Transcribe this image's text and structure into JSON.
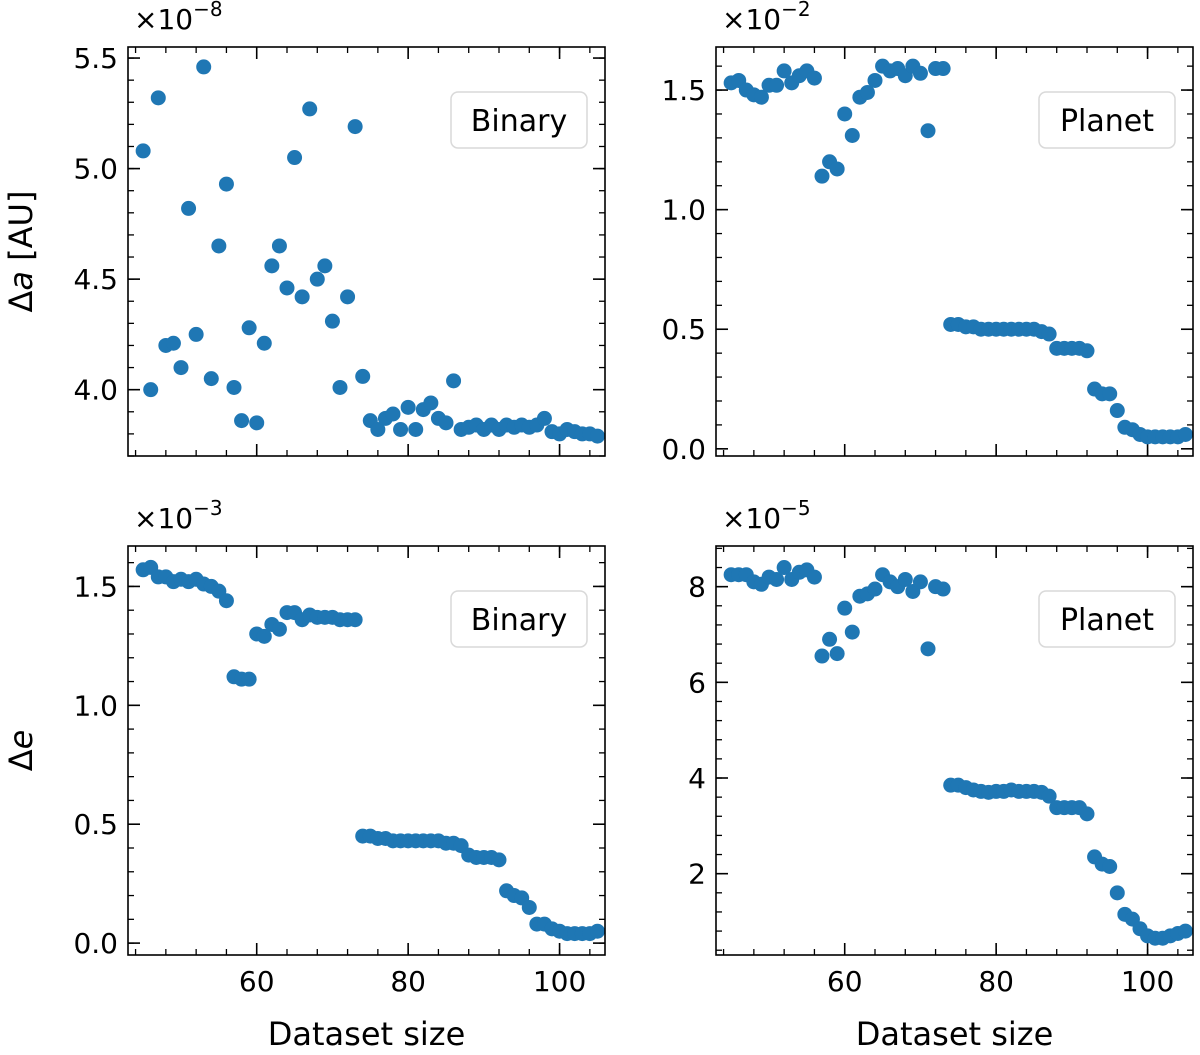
{
  "chart_data": [
    {
      "type": "scatter",
      "legend": "Binary",
      "legend_position": "top-right",
      "multiplier": {
        "base": "×10",
        "exp": "−8"
      },
      "ylabel_prefix": "Δ",
      "ylabel_var": "a",
      "ylabel_unit": " [AU]",
      "xlabel": "",
      "xlim": [
        43,
        106
      ],
      "ylim": [
        3.7,
        5.55
      ],
      "xticks": [
        60,
        80,
        100
      ],
      "yticks": [
        4.0,
        4.5,
        5.0,
        5.5
      ],
      "ytick_labels": [
        "4.0",
        "4.5",
        "5.0",
        "5.5"
      ],
      "series": [
        {
          "color": "#1f77b4",
          "x": [
            45,
            46,
            47,
            48,
            49,
            50,
            51,
            52,
            53,
            54,
            55,
            56,
            57,
            58,
            59,
            60,
            61,
            62,
            63,
            64,
            65,
            66,
            67,
            68,
            69,
            70,
            71,
            72,
            73,
            74,
            75,
            76,
            77,
            78,
            79,
            80,
            81,
            82,
            83,
            84,
            85,
            86,
            87,
            88,
            89,
            90,
            91,
            92,
            93,
            94,
            95,
            96,
            97,
            98,
            99,
            100,
            101,
            102,
            103,
            104,
            105
          ],
          "y": [
            5.08,
            4.0,
            5.32,
            4.2,
            4.21,
            4.1,
            4.82,
            4.25,
            5.46,
            4.05,
            4.65,
            4.93,
            4.01,
            3.86,
            4.28,
            3.85,
            4.21,
            4.56,
            4.65,
            4.46,
            5.05,
            4.42,
            5.27,
            4.5,
            4.56,
            4.31,
            4.01,
            4.42,
            5.19,
            4.06,
            3.86,
            3.82,
            3.87,
            3.89,
            3.82,
            3.92,
            3.82,
            3.91,
            3.94,
            3.87,
            3.85,
            4.04,
            3.82,
            3.83,
            3.84,
            3.82,
            3.84,
            3.82,
            3.84,
            3.83,
            3.84,
            3.83,
            3.84,
            3.87,
            3.81,
            3.8,
            3.82,
            3.81,
            3.8,
            3.8,
            3.79
          ]
        }
      ]
    },
    {
      "type": "scatter",
      "legend": "Planet",
      "legend_position": "top-right",
      "multiplier": {
        "base": "×10",
        "exp": "−2"
      },
      "xlabel": "",
      "xlim": [
        43,
        106
      ],
      "ylim": [
        -0.03,
        1.68
      ],
      "xticks": [
        60,
        80,
        100
      ],
      "yticks": [
        0.0,
        0.5,
        1.0,
        1.5
      ],
      "ytick_labels": [
        "0.0",
        "0.5",
        "1.0",
        "1.5"
      ],
      "series": [
        {
          "color": "#1f77b4",
          "x": [
            45,
            46,
            47,
            48,
            49,
            50,
            51,
            52,
            53,
            54,
            55,
            56,
            57,
            58,
            59,
            60,
            61,
            62,
            63,
            64,
            65,
            66,
            67,
            68,
            69,
            70,
            71,
            72,
            73,
            74,
            75,
            76,
            77,
            78,
            79,
            80,
            81,
            82,
            83,
            84,
            85,
            86,
            87,
            88,
            89,
            90,
            91,
            92,
            93,
            94,
            95,
            96,
            97,
            98,
            99,
            100,
            101,
            102,
            103,
            104,
            105
          ],
          "y": [
            1.53,
            1.54,
            1.5,
            1.48,
            1.47,
            1.52,
            1.52,
            1.58,
            1.53,
            1.56,
            1.58,
            1.55,
            1.14,
            1.2,
            1.17,
            1.4,
            1.31,
            1.47,
            1.49,
            1.54,
            1.6,
            1.58,
            1.59,
            1.56,
            1.6,
            1.57,
            1.33,
            1.59,
            1.59,
            0.52,
            0.52,
            0.51,
            0.51,
            0.5,
            0.5,
            0.5,
            0.5,
            0.5,
            0.5,
            0.5,
            0.5,
            0.49,
            0.48,
            0.42,
            0.42,
            0.42,
            0.42,
            0.41,
            0.25,
            0.23,
            0.23,
            0.16,
            0.09,
            0.08,
            0.06,
            0.05,
            0.05,
            0.05,
            0.05,
            0.05,
            0.06
          ]
        }
      ]
    },
    {
      "type": "scatter",
      "legend": "Binary",
      "legend_position": "top-right",
      "multiplier": {
        "base": "×10",
        "exp": "−3"
      },
      "ylabel_prefix": "Δ",
      "ylabel_var": "e",
      "ylabel_unit": "",
      "xlabel": "Dataset size",
      "xlim": [
        43,
        106
      ],
      "ylim": [
        -0.05,
        1.67
      ],
      "xticks": [
        60,
        80,
        100
      ],
      "yticks": [
        0.0,
        0.5,
        1.0,
        1.5
      ],
      "ytick_labels": [
        "0.0",
        "0.5",
        "1.0",
        "1.5"
      ],
      "series": [
        {
          "color": "#1f77b4",
          "x": [
            45,
            46,
            47,
            48,
            49,
            50,
            51,
            52,
            53,
            54,
            55,
            56,
            57,
            58,
            59,
            60,
            61,
            62,
            63,
            64,
            65,
            66,
            67,
            68,
            69,
            70,
            71,
            72,
            73,
            74,
            75,
            76,
            77,
            78,
            79,
            80,
            81,
            82,
            83,
            84,
            85,
            86,
            87,
            88,
            89,
            90,
            91,
            92,
            93,
            94,
            95,
            96,
            97,
            98,
            99,
            100,
            101,
            102,
            103,
            104,
            105
          ],
          "y": [
            1.57,
            1.58,
            1.54,
            1.54,
            1.52,
            1.53,
            1.52,
            1.53,
            1.51,
            1.5,
            1.48,
            1.44,
            1.12,
            1.11,
            1.11,
            1.3,
            1.29,
            1.34,
            1.32,
            1.39,
            1.39,
            1.36,
            1.38,
            1.37,
            1.37,
            1.37,
            1.36,
            1.36,
            1.36,
            0.45,
            0.45,
            0.44,
            0.44,
            0.43,
            0.43,
            0.43,
            0.43,
            0.43,
            0.43,
            0.43,
            0.42,
            0.42,
            0.41,
            0.37,
            0.36,
            0.36,
            0.36,
            0.35,
            0.22,
            0.2,
            0.19,
            0.15,
            0.08,
            0.08,
            0.06,
            0.05,
            0.04,
            0.04,
            0.04,
            0.04,
            0.05
          ]
        }
      ]
    },
    {
      "type": "scatter",
      "legend": "Planet",
      "legend_position": "top-right",
      "multiplier": {
        "base": "×10",
        "exp": "−5"
      },
      "xlabel": "Dataset size",
      "xlim": [
        43,
        106
      ],
      "ylim": [
        0.3,
        8.85
      ],
      "xticks": [
        60,
        80,
        100
      ],
      "yticks": [
        2,
        4,
        6,
        8
      ],
      "ytick_labels": [
        "2",
        "4",
        "6",
        "8"
      ],
      "series": [
        {
          "color": "#1f77b4",
          "x": [
            45,
            46,
            47,
            48,
            49,
            50,
            51,
            52,
            53,
            54,
            55,
            56,
            57,
            58,
            59,
            60,
            61,
            62,
            63,
            64,
            65,
            66,
            67,
            68,
            69,
            70,
            71,
            72,
            73,
            74,
            75,
            76,
            77,
            78,
            79,
            80,
            81,
            82,
            83,
            84,
            85,
            86,
            87,
            88,
            89,
            90,
            91,
            92,
            93,
            94,
            95,
            96,
            97,
            98,
            99,
            100,
            101,
            102,
            103,
            104,
            105
          ],
          "y": [
            8.25,
            8.25,
            8.25,
            8.1,
            8.05,
            8.2,
            8.15,
            8.4,
            8.15,
            8.3,
            8.35,
            8.2,
            6.55,
            6.9,
            6.6,
            7.55,
            7.05,
            7.8,
            7.85,
            7.95,
            8.25,
            8.1,
            8.0,
            8.15,
            7.9,
            8.1,
            6.7,
            8.0,
            7.95,
            3.85,
            3.85,
            3.8,
            3.75,
            3.72,
            3.7,
            3.72,
            3.72,
            3.75,
            3.72,
            3.72,
            3.72,
            3.7,
            3.62,
            3.38,
            3.38,
            3.38,
            3.38,
            3.25,
            2.35,
            2.2,
            2.15,
            1.6,
            1.15,
            1.05,
            0.85,
            0.7,
            0.65,
            0.65,
            0.7,
            0.75,
            0.8
          ]
        }
      ]
    }
  ]
}
